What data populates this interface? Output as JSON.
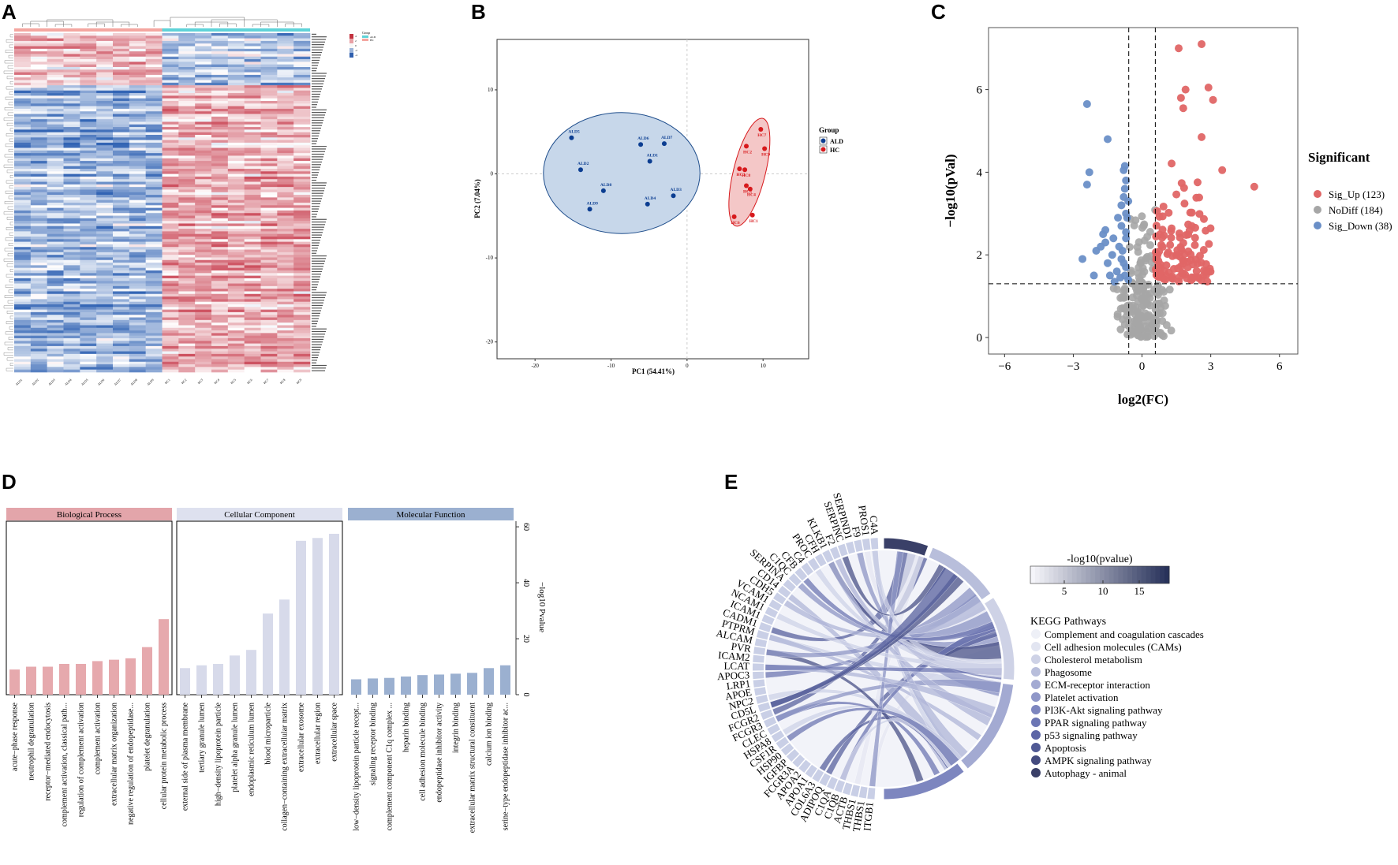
{
  "panels": {
    "a": "A",
    "b": "B",
    "c": "C",
    "d": "D",
    "e": "E"
  },
  "colors": {
    "red": "#d7191c",
    "blue": "#0b3d91",
    "up": "#e06666",
    "nodiff": "#a6a6a6",
    "down": "#6a8fc7",
    "bp": "#e6a9ad",
    "cc": "#d7daea",
    "mf": "#9bb0d0"
  },
  "chart_data": [
    {
      "id": "A",
      "type": "heatmap",
      "legend_title": "Group",
      "groups": [
        "ALD",
        "HC"
      ],
      "samples_ald": [
        "ALD1",
        "ALD2",
        "ALD3",
        "ALD4",
        "ALD5",
        "ALD6",
        "ALD7",
        "ALD8",
        "ALD9"
      ],
      "samples_hc": [
        "HC1",
        "HC2",
        "HC3",
        "HC4",
        "HC5",
        "HC6",
        "HC7",
        "HC8",
        "HC9"
      ],
      "color_scale": [
        "4",
        "2",
        "0",
        "-2",
        "-4"
      ]
    },
    {
      "id": "B",
      "type": "scatter",
      "title": "",
      "xlabel": "PC1 (54.41%)",
      "ylabel": "PC2 (7.04%)",
      "xlim": [
        -25,
        16
      ],
      "ylim": [
        -22,
        16
      ],
      "xticks": [
        -20,
        -10,
        0,
        10
      ],
      "yticks": [
        -20,
        -10,
        0,
        10
      ],
      "legend_title": "Group",
      "series": [
        {
          "name": "ALD",
          "points": [
            {
              "label": "ALD5",
              "x": -15.2,
              "y": 4.3
            },
            {
              "label": "ALD6",
              "x": -6.1,
              "y": 3.5
            },
            {
              "label": "ALD7",
              "x": -3.0,
              "y": 3.6
            },
            {
              "label": "ALD1",
              "x": -4.9,
              "y": 1.5
            },
            {
              "label": "ALD2",
              "x": -14.0,
              "y": 0.5
            },
            {
              "label": "ALD8",
              "x": -11.0,
              "y": -2.0
            },
            {
              "label": "ALD9",
              "x": -12.8,
              "y": -4.2
            },
            {
              "label": "ALD4",
              "x": -5.2,
              "y": -3.6
            },
            {
              "label": "ALD3",
              "x": -1.8,
              "y": -2.6
            }
          ]
        },
        {
          "name": "HC",
          "points": [
            {
              "label": "HC7",
              "x": 9.7,
              "y": 5.3
            },
            {
              "label": "HC2",
              "x": 7.8,
              "y": 3.3
            },
            {
              "label": "HC9",
              "x": 10.2,
              "y": 3.0
            },
            {
              "label": "HC3",
              "x": 6.9,
              "y": 0.6
            },
            {
              "label": "HC8",
              "x": 7.6,
              "y": 0.5
            },
            {
              "label": "HC5",
              "x": 7.8,
              "y": -1.4
            },
            {
              "label": "HC4",
              "x": 8.3,
              "y": -1.8
            },
            {
              "label": "HC1",
              "x": 8.6,
              "y": -4.9
            },
            {
              "label": "HC6",
              "x": 6.2,
              "y": -5.1
            }
          ]
        }
      ]
    },
    {
      "id": "C",
      "type": "scatter",
      "xlabel": "log2(FC)",
      "ylabel": "−log10(pVal)",
      "xlim": [
        -6.7,
        6.8
      ],
      "ylim": [
        -0.4,
        7.5
      ],
      "xticks": [
        "−6",
        "−3",
        "0",
        "3",
        "6"
      ],
      "xtick_values": [
        -6,
        -3,
        0,
        3,
        6
      ],
      "yticks": [
        0,
        2,
        4,
        6
      ],
      "thresholds": {
        "x": [
          -0.58,
          0.58
        ],
        "y": 1.3
      },
      "legend_title": "Significant",
      "legend": [
        {
          "name": "Sig_Up (123)"
        },
        {
          "name": "NoDiff (184)"
        },
        {
          "name": "Sig_Down (38)"
        }
      ]
    },
    {
      "id": "D",
      "type": "bar",
      "ylabel": "−log10 Pvalue",
      "ylim": [
        0,
        62
      ],
      "yticks": [
        0,
        20,
        40,
        60
      ],
      "groups": [
        {
          "name": "Biological Process",
          "categories": [
            "acute−phase response",
            "neutrophil degranulation",
            "receptor−mediated endocytosis",
            "complement activation, classical path...",
            "regulation of complement activation",
            "complement activation",
            "extracellular matrix organization",
            "negative regulation of endopeptidase...",
            "platelet degranulation",
            "cellular protein metabolic process"
          ],
          "values": [
            9,
            10,
            10,
            11,
            11,
            12,
            12.5,
            13,
            17,
            27
          ]
        },
        {
          "name": "Cellular Component",
          "categories": [
            "external side of plasma membrane",
            "tertiary granule lumen",
            "high−density lipoprotein particle",
            "platelet alpha granule lumen",
            "endoplasmic reticulum lumen",
            "blood microparticle",
            "collagen−containing extracellular matrix",
            "extracellular exosome",
            "extracellular region",
            "extracellular space"
          ],
          "values": [
            9.5,
            10.5,
            11,
            14,
            16,
            29,
            34,
            55,
            56,
            57.5
          ]
        },
        {
          "name": "Molecular Function",
          "categories": [
            "low−density lipoprotein particle recept...",
            "signaling receptor binding",
            "complement component C1q complex ...",
            "heparin binding",
            "cell adhesion molecule binding",
            "endopeptidase inhibitor activity",
            "integrin binding",
            "extracellular matrix structural constituent",
            "calcium ion binding",
            "serine−type endopeptidase inhibitor ac..."
          ],
          "values": [
            5.5,
            5.8,
            6,
            6.5,
            7,
            7.2,
            7.5,
            7.8,
            9.5,
            10.5
          ]
        }
      ]
    },
    {
      "id": "E",
      "type": "chord",
      "colorbar_title": "-log10(pvalue)",
      "colorbar_ticks": [
        "5",
        "10",
        "15"
      ],
      "legend_title": "KEGG Pathways",
      "pathways": [
        "Complement and coagulation cascades",
        "Cell adhesion molecules (CAMs)",
        "Cholesterol metabolism",
        "Phagosome",
        "ECM-receptor interaction",
        "Platelet activation",
        "PI3K-Akt signaling pathway",
        "PPAR signaling pathway",
        "p53 signaling pathway",
        "Apoptosis",
        "AMPK signaling pathway",
        "Autophagy - animal"
      ],
      "pathway_colors": [
        "#eef0f7",
        "#e2e5f1",
        "#ced2e6",
        "#b8bedb",
        "#a3aad2",
        "#8f97c8",
        "#7d86bf",
        "#6c76b4",
        "#5d66a6",
        "#505994",
        "#444b7f",
        "#3a4068"
      ],
      "genes": [
        "ITGB1",
        "THBS1",
        "THBS1",
        "ACTB",
        "C1QB",
        "C1QA",
        "ADIPOQ",
        "COL6A3",
        "APOA1",
        "APOA2",
        "FCGR3A",
        "IGFBP",
        "HSP90",
        "CSF1R",
        "HSPA8",
        "CLEC",
        "FCGR3",
        "FCGR2",
        "CD5L",
        "NPC2",
        "APOE",
        "LRP1",
        "APOC3",
        "LCAT",
        "ICAM2",
        "PVR",
        "ALCAM",
        "PTPRM",
        "CADM1",
        "ICAM1",
        "NCAM1",
        "VCAM1",
        "CDH5",
        "CD14",
        "SERPINA",
        "C1QC",
        "CFB",
        "C4",
        "PROC",
        "CFH",
        "KLKB1",
        "F2",
        "SERPINC",
        "SERPIND1",
        "F9",
        "PROS1",
        "C4A"
      ]
    }
  ]
}
